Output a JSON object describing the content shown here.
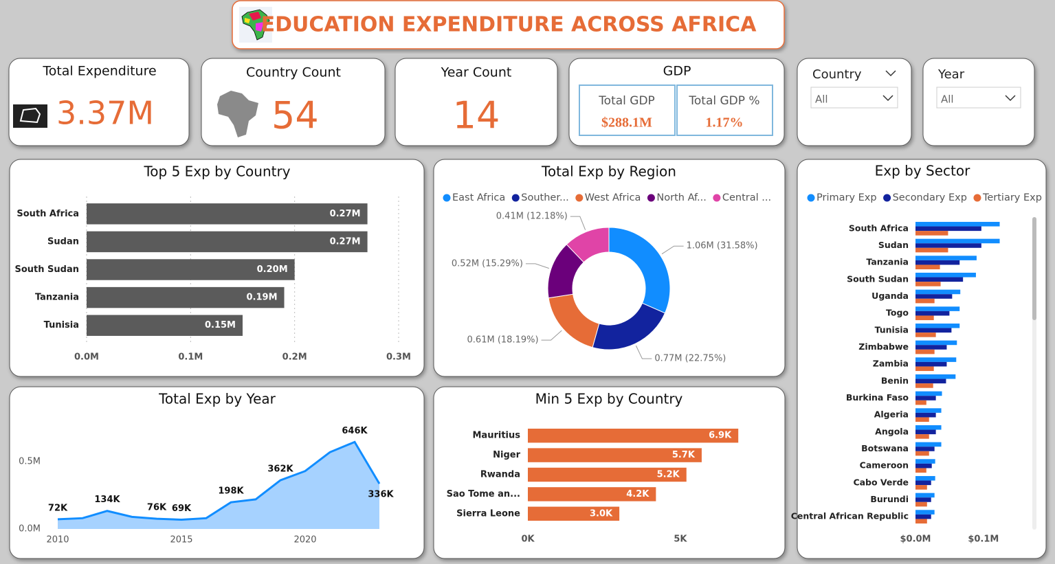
{
  "header": {
    "title": "EDUCATION EXPENDITURE ACROSS AFRICA"
  },
  "cards": [
    {
      "title": "Total Expenditure",
      "value": "3.37M"
    },
    {
      "title": "Country Count",
      "value": "54"
    },
    {
      "title": "Year Count",
      "value": "14"
    }
  ],
  "gdp": {
    "title": "GDP",
    "items": [
      {
        "label": "Total GDP",
        "value": "$288.1M"
      },
      {
        "label": "Total GDP %",
        "value": "1.17%"
      }
    ]
  },
  "slicers": [
    {
      "title": "Country",
      "value": "All"
    },
    {
      "title": "Year",
      "value": "All"
    }
  ],
  "chart_data": [
    {
      "type": "bar",
      "orientation": "horizontal",
      "title": "Top 5 Exp by Country",
      "categories": [
        "South Africa",
        "Sudan",
        "South Sudan",
        "Tanzania",
        "Tunisia"
      ],
      "values": [
        0.27,
        0.27,
        0.2,
        0.19,
        0.15
      ],
      "value_labels": [
        "0.27M",
        "0.27M",
        "0.20M",
        "0.19M",
        "0.15M"
      ],
      "color": "#5b5b5b",
      "xlim": [
        0,
        0.3
      ],
      "xticks": [
        {
          "value": 0,
          "label": "0.0M"
        },
        {
          "value": 0.1,
          "label": "0.1M"
        },
        {
          "value": 0.2,
          "label": "0.2M"
        },
        {
          "value": 0.3,
          "label": "0.3M"
        }
      ],
      "grid": true
    },
    {
      "type": "pie",
      "title": "Total Exp by Region",
      "categories": [
        "East Africa",
        "Souther...",
        "West Africa",
        "North Af...",
        "Central ..."
      ],
      "values": [
        31.58,
        22.75,
        18.19,
        15.29,
        12.18
      ],
      "value_labels": [
        "1.06M (31.58%)",
        "0.77M (22.75%)",
        "0.61M (18.19%)",
        "0.52M (15.29%)",
        "0.41M (12.18%)"
      ],
      "colors": [
        "#118dff",
        "#12239e",
        "#e66c37",
        "#6b007b",
        "#e044a7"
      ]
    },
    {
      "type": "area",
      "title": "Total Exp by Year",
      "x": [
        2010,
        2011,
        2012,
        2013,
        2014,
        2015,
        2016,
        2017,
        2018,
        2019,
        2020,
        2021,
        2022,
        2023
      ],
      "values": [
        0.072,
        0.08,
        0.134,
        0.09,
        0.076,
        0.069,
        0.08,
        0.198,
        0.22,
        0.362,
        0.43,
        0.57,
        0.646,
        0.336
      ],
      "value_labels": [
        "72K",
        null,
        "134K",
        null,
        "76K",
        "69K",
        null,
        "198K",
        null,
        "362K",
        null,
        null,
        "646K",
        "336K"
      ],
      "color": "#118dff",
      "fill": "#a6d2ff",
      "xlim": [
        2010,
        2023
      ],
      "xticks": [
        2010,
        2015,
        2020
      ],
      "ylim": [
        0,
        0.75
      ],
      "yticks": [
        {
          "value": 0,
          "label": "0.0M"
        },
        {
          "value": 0.5,
          "label": "0.5M"
        }
      ]
    },
    {
      "type": "bar",
      "orientation": "horizontal",
      "title": "Min 5 Exp by Country",
      "categories": [
        "Mauritius",
        "Niger",
        "Rwanda",
        "Sao Tome an...",
        "Sierra Leone"
      ],
      "values": [
        6.9,
        5.7,
        5.2,
        4.2,
        3.0
      ],
      "value_labels": [
        "6.9K",
        "5.7K",
        "5.2K",
        "4.2K",
        "3.0K"
      ],
      "color": "#e66c37",
      "xlim": [
        0,
        8
      ],
      "xticks": [
        {
          "value": 0,
          "label": "0K"
        },
        {
          "value": 5,
          "label": "5K"
        }
      ],
      "grid": false
    },
    {
      "type": "bar",
      "orientation": "horizontal",
      "title": "Exp by Sector",
      "categories": [
        "South Africa",
        "Sudan",
        "Tanzania",
        "South Sudan",
        "Uganda",
        "Togo",
        "Tunisia",
        "Zimbabwe",
        "Zambia",
        "Benin",
        "Burkina Faso",
        "Algeria",
        "Angola",
        "Botswana",
        "Cameroon",
        "Cabo Verde",
        "Burundi",
        "Central African Republic"
      ],
      "series": [
        {
          "name": "Primary Exp",
          "color": "#118dff",
          "values": [
            0.124,
            0.124,
            0.09,
            0.089,
            0.066,
            0.065,
            0.065,
            0.061,
            0.06,
            0.059,
            0.039,
            0.038,
            0.038,
            0.038,
            0.029,
            0.029,
            0.028,
            0.028
          ]
        },
        {
          "name": "Secondary Exp",
          "color": "#12239e",
          "values": [
            0.097,
            0.097,
            0.065,
            0.07,
            0.054,
            0.05,
            0.053,
            0.046,
            0.046,
            0.045,
            0.03,
            0.03,
            0.03,
            0.028,
            0.024,
            0.023,
            0.023,
            0.023
          ]
        },
        {
          "name": "Tertiary Exp",
          "color": "#e66c37",
          "values": [
            0.048,
            0.048,
            0.036,
            0.037,
            0.028,
            0.027,
            0.03,
            0.028,
            0.027,
            0.026,
            0.016,
            0.02,
            0.02,
            0.02,
            0.016,
            0.017,
            0.017,
            0.017
          ]
        }
      ],
      "xlim": [
        0,
        0.17
      ],
      "xticks": [
        {
          "value": 0,
          "label": "$0.0M"
        },
        {
          "value": 0.1,
          "label": "$0.1M"
        }
      ],
      "grid": false
    }
  ]
}
